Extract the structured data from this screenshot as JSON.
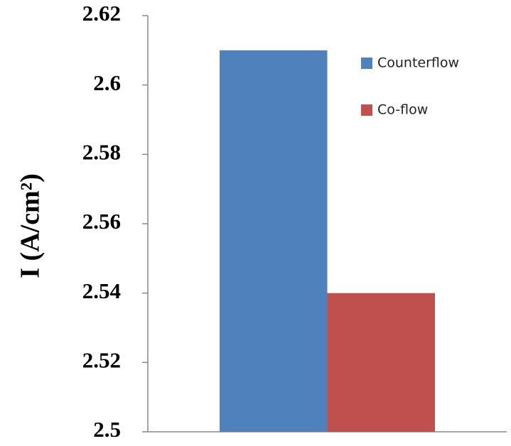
{
  "chart_data": {
    "type": "bar",
    "y_label": "I (A/cm²)",
    "categories": [
      null
    ],
    "series": [
      {
        "name": "Counterflow",
        "color": "#4f81bd",
        "values": [
          2.61
        ]
      },
      {
        "name": "Co-flow",
        "color": "#c0504d",
        "values": [
          2.54
        ]
      }
    ],
    "ylim": [
      2.5,
      2.62
    ],
    "yticks": [
      2.5,
      2.52,
      2.54,
      2.56,
      2.58,
      2.6,
      2.62
    ],
    "grid": false,
    "legend": "right"
  }
}
